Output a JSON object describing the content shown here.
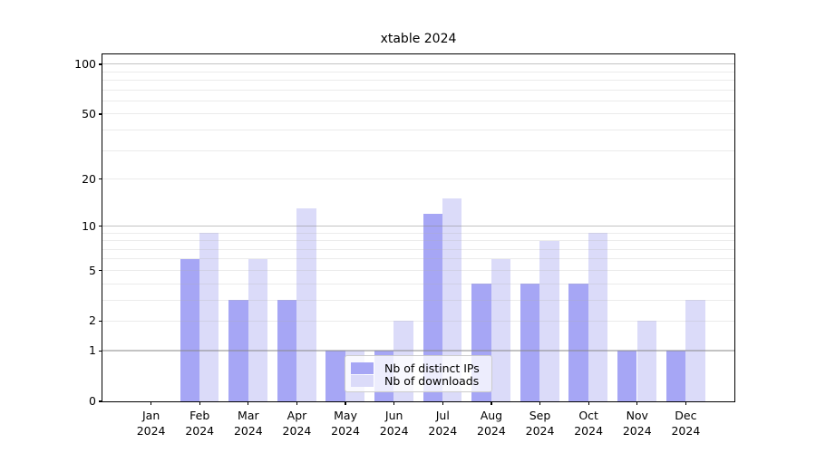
{
  "title": "xtable 2024",
  "chart_data": {
    "type": "bar",
    "x_categories": [
      "Jan",
      "Feb",
      "Mar",
      "Apr",
      "May",
      "Jun",
      "Jul",
      "Aug",
      "Sep",
      "Oct",
      "Nov",
      "Dec"
    ],
    "x_year_suffix": "2024",
    "series": [
      {
        "name": "Nb of distinct IPs",
        "color": "#a6a6f5",
        "values": [
          0,
          6,
          3,
          3,
          1,
          1,
          12,
          4,
          4,
          4,
          1,
          1
        ]
      },
      {
        "name": "Nb of downloads",
        "color": "#dbdbf9",
        "values": [
          0,
          9,
          6,
          13,
          1,
          2,
          15,
          6,
          8,
          9,
          2,
          3
        ]
      }
    ],
    "y_scale": "log1p",
    "ylim": [
      0,
      114
    ],
    "y_tick_labels": [
      0,
      1,
      2,
      5,
      10,
      20,
      50,
      100
    ],
    "y_major_gridlines": [
      1,
      10,
      100
    ],
    "y_minor_gridlines": [
      2,
      3,
      4,
      5,
      6,
      7,
      8,
      9,
      20,
      30,
      40,
      50,
      60,
      70,
      80,
      90
    ],
    "grid": "on",
    "legend_position": "lower center"
  },
  "colors": {
    "major_grid": "rgba(135,135,135,0.5)",
    "minor_grid": "rgba(175,175,175,0.25)",
    "spine": "#000000",
    "background": "#ffffff",
    "text": "#000000"
  }
}
